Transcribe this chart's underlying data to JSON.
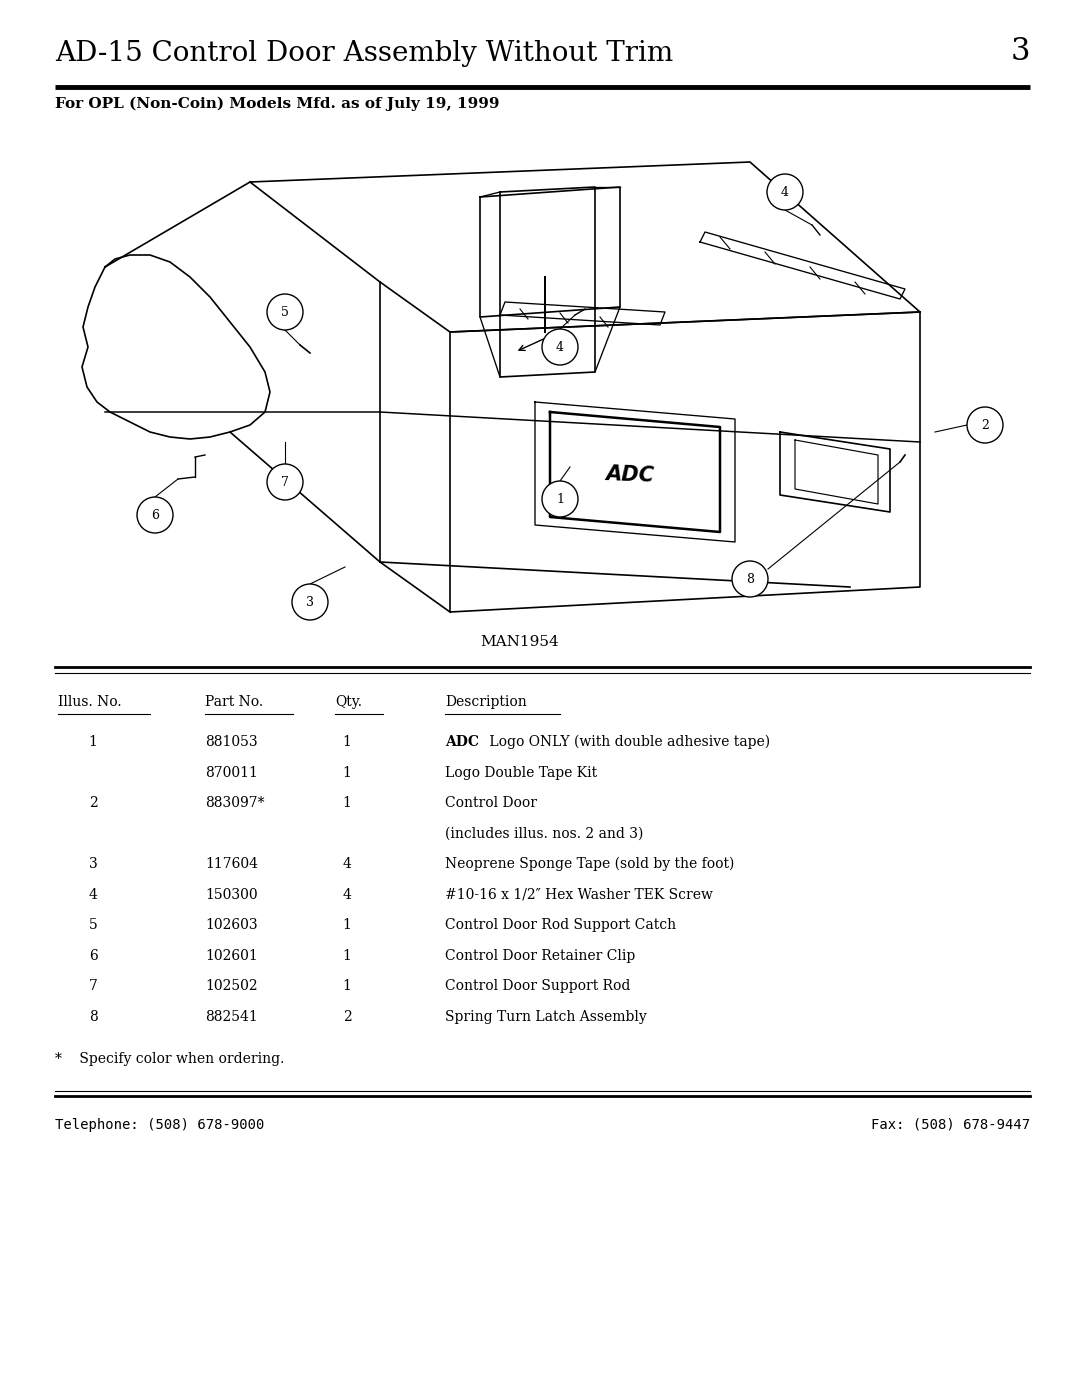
{
  "title": "AD-15 Control Door Assembly Without Trim",
  "page_number": "3",
  "subtitle": "For OPL (Non-Coin) Models Mfd. as of July 19, 1999",
  "figure_id": "MAN1954",
  "table_headers": [
    "Illus. No.",
    "Part No.",
    "Qty.",
    "Description"
  ],
  "table_rows": [
    [
      "1",
      "881053",
      "1",
      "ADC Logo ONLY (with double adhesive tape)",
      true
    ],
    [
      "",
      "870011",
      "1",
      "Logo Double Tape Kit",
      false
    ],
    [
      "2",
      "883097*",
      "1",
      "Control Door",
      false
    ],
    [
      "",
      "",
      "",
      "(includes illus. nos. 2 and 3)",
      false
    ],
    [
      "3",
      "117604",
      "4",
      "Neoprene Sponge Tape (sold by the foot)",
      false
    ],
    [
      "4",
      "150300",
      "4",
      "#10-16 x 1/2″ Hex Washer TEK Screw",
      false
    ],
    [
      "5",
      "102603",
      "1",
      "Control Door Rod Support Catch",
      false
    ],
    [
      "6",
      "102601",
      "1",
      "Control Door Retainer Clip",
      false
    ],
    [
      "7",
      "102502",
      "1",
      "Control Door Support Rod",
      false
    ],
    [
      "8",
      "882541",
      "2",
      "Spring Turn Latch Assembly",
      false
    ]
  ],
  "footnote": "*    Specify color when ordering.",
  "telephone": "Telephone: (508) 678-9000",
  "fax": "Fax: (508) 678-9447",
  "bg_color": "#ffffff",
  "text_color": "#000000",
  "title_fontsize": 20,
  "subtitle_fontsize": 11,
  "table_fontsize": 10
}
